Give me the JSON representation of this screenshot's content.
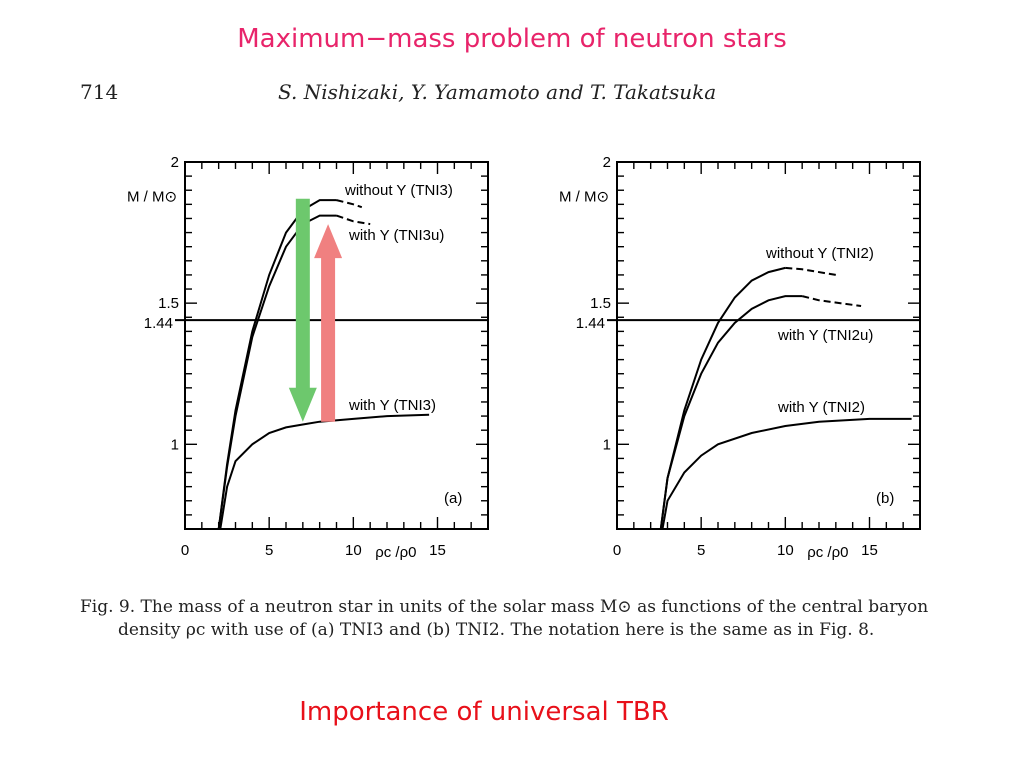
{
  "slide": {
    "title": "Maximum−mass problem of neutron stars",
    "footer": "Importance of universal TBR"
  },
  "paper": {
    "page_number": "714",
    "authors": "S. Nishizaki, Y. Yamamoto and T. Takatsuka",
    "caption_line1": "Fig. 9.  The mass of a neutron star in units of the solar mass M⊙ as functions of the central baryon",
    "caption_line2": "density ρc with use of (a) TNI3 and (b) TNI2. The notation here is the same as in Fig. 8."
  },
  "colors": {
    "title": "#e8246a",
    "footer": "#e8101a",
    "arrow_down": "#6dc86d",
    "arrow_up": "#f08080"
  },
  "chart_data": [
    {
      "type": "line",
      "panel": "(a)",
      "xlabel": "ρc /ρ0",
      "ylabel": "M / M⊙",
      "xlim": [
        0,
        18
      ],
      "ylim": [
        0.7,
        2.0
      ],
      "x_ticks": [
        "0",
        "5",
        "10",
        "15"
      ],
      "y_ticks": [
        "1",
        "1.5",
        "2"
      ],
      "reference_line": {
        "value": 1.44,
        "label": "1.44"
      },
      "series": [
        {
          "name": "without Y (TNI3)",
          "style": "dashed-end",
          "points": [
            [
              2.0,
              0.7
            ],
            [
              2.5,
              0.93
            ],
            [
              3,
              1.12
            ],
            [
              4,
              1.4
            ],
            [
              5,
              1.6
            ],
            [
              6,
              1.75
            ],
            [
              7,
              1.83
            ],
            [
              8,
              1.865
            ],
            [
              9,
              1.865
            ],
            [
              10,
              1.85
            ],
            [
              10.5,
              1.84
            ]
          ]
        },
        {
          "name": "with Y (TNI3u)",
          "style": "dashed-end",
          "points": [
            [
              2.0,
              0.7
            ],
            [
              2.5,
              0.92
            ],
            [
              3,
              1.1
            ],
            [
              4,
              1.38
            ],
            [
              5,
              1.56
            ],
            [
              6,
              1.7
            ],
            [
              7,
              1.78
            ],
            [
              8,
              1.81
            ],
            [
              9,
              1.81
            ],
            [
              10,
              1.79
            ],
            [
              11,
              1.78
            ]
          ]
        },
        {
          "name": "with Y (TNI3)",
          "style": "solid",
          "points": [
            [
              2.1,
              0.7
            ],
            [
              2.5,
              0.85
            ],
            [
              3,
              0.94
            ],
            [
              4,
              1.0
            ],
            [
              5,
              1.04
            ],
            [
              6,
              1.06
            ],
            [
              7,
              1.07
            ],
            [
              8,
              1.08
            ],
            [
              10,
              1.09
            ],
            [
              12,
              1.1
            ],
            [
              14.5,
              1.105
            ]
          ]
        }
      ],
      "arrows": [
        {
          "direction": "down",
          "x": 7.0,
          "from": 1.87,
          "to": 1.08,
          "color": "green"
        },
        {
          "direction": "up",
          "x": 8.5,
          "from": 1.08,
          "to": 1.78,
          "color": "red"
        }
      ]
    },
    {
      "type": "line",
      "panel": "(b)",
      "xlabel": "ρc /ρ0",
      "ylabel": "M / M⊙",
      "xlim": [
        0,
        18
      ],
      "ylim": [
        0.7,
        2.0
      ],
      "x_ticks": [
        "0",
        "5",
        "10",
        "15"
      ],
      "y_ticks": [
        "1",
        "1.5",
        "2"
      ],
      "reference_line": {
        "value": 1.44,
        "label": "1.44"
      },
      "series": [
        {
          "name": "without Y (TNI2)",
          "style": "dashed-end",
          "points": [
            [
              2.6,
              0.7
            ],
            [
              3,
              0.88
            ],
            [
              4,
              1.12
            ],
            [
              5,
              1.3
            ],
            [
              6,
              1.43
            ],
            [
              7,
              1.52
            ],
            [
              8,
              1.58
            ],
            [
              9,
              1.61
            ],
            [
              10,
              1.625
            ],
            [
              11,
              1.62
            ],
            [
              13,
              1.6
            ]
          ]
        },
        {
          "name": "with Y (TNI2u)",
          "style": "dashed-end",
          "points": [
            [
              2.6,
              0.7
            ],
            [
              3,
              0.88
            ],
            [
              4,
              1.1
            ],
            [
              5,
              1.25
            ],
            [
              6,
              1.36
            ],
            [
              7,
              1.43
            ],
            [
              8,
              1.48
            ],
            [
              9,
              1.51
            ],
            [
              10,
              1.525
            ],
            [
              11,
              1.525
            ],
            [
              12,
              1.51
            ],
            [
              14.5,
              1.49
            ]
          ]
        },
        {
          "name": "with Y (TNI2)",
          "style": "solid",
          "points": [
            [
              2.7,
              0.7
            ],
            [
              3,
              0.8
            ],
            [
              4,
              0.9
            ],
            [
              5,
              0.96
            ],
            [
              6,
              1.0
            ],
            [
              8,
              1.04
            ],
            [
              10,
              1.065
            ],
            [
              12,
              1.08
            ],
            [
              15,
              1.09
            ],
            [
              17.5,
              1.09
            ]
          ]
        }
      ]
    }
  ]
}
